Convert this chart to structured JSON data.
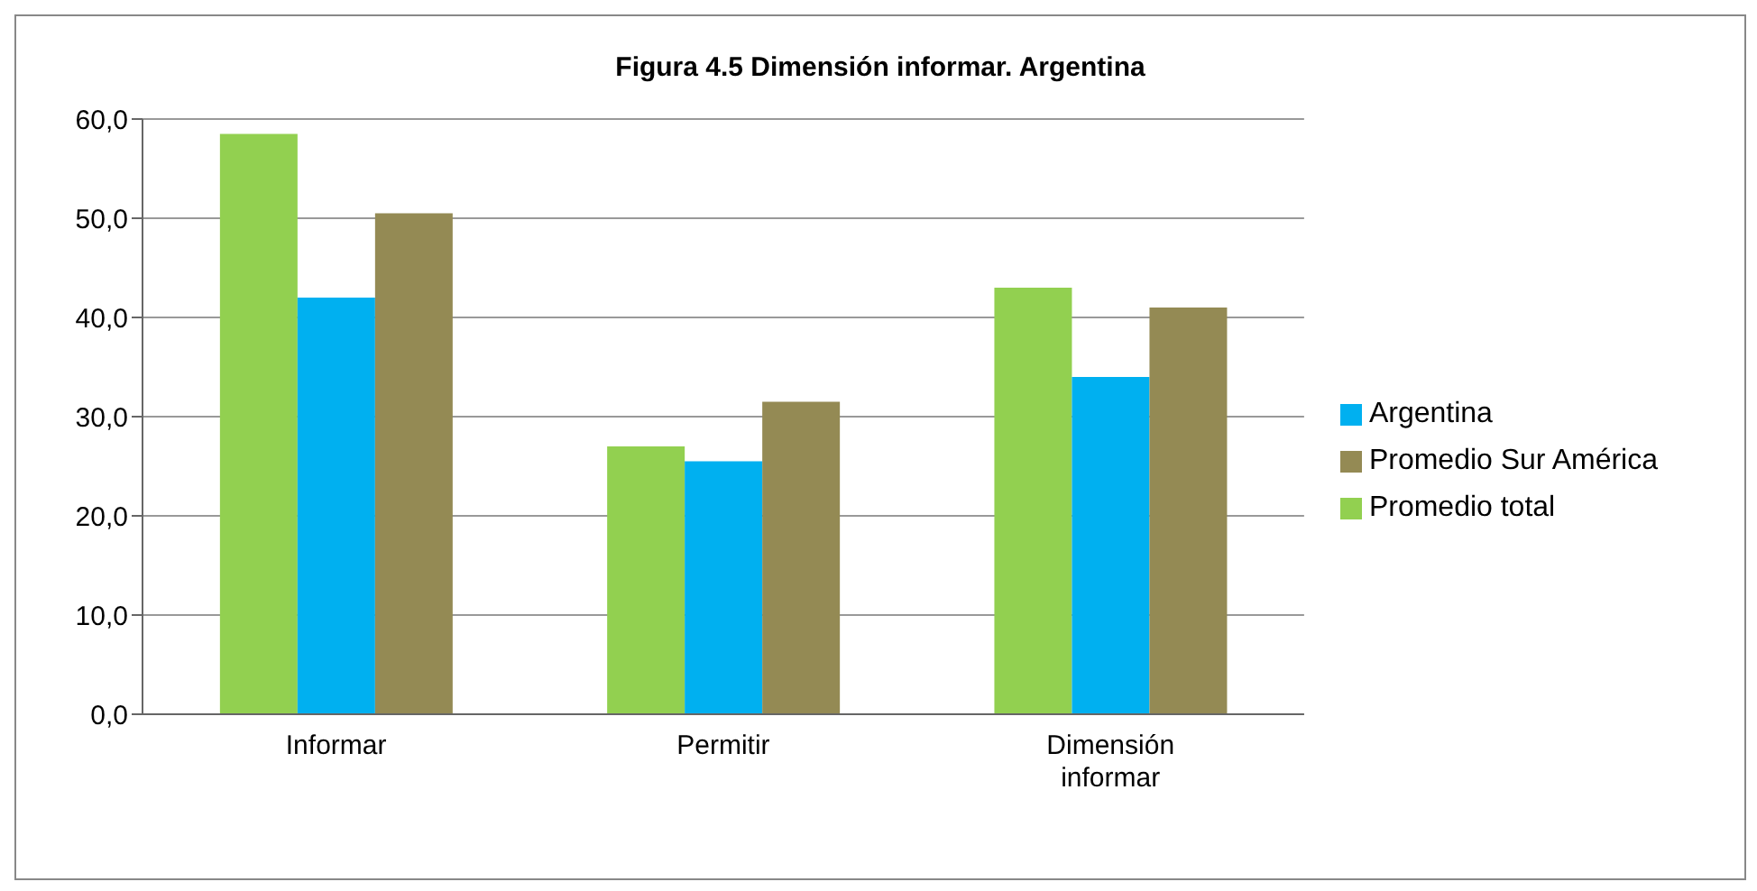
{
  "chart_data": {
    "type": "bar",
    "title": "Figura 4.5 Dimensión  informar. Argentina",
    "categories": [
      "Informar",
      "Permitir",
      "Dimensión informar"
    ],
    "series": [
      {
        "name": "Promedio total",
        "color": "#92d050",
        "values": [
          58.5,
          27,
          43
        ]
      },
      {
        "name": "Argentina",
        "color": "#00b0f0",
        "values": [
          42,
          25.5,
          34
        ]
      },
      {
        "name": "Promedio Sur América",
        "color": "#948a54",
        "values": [
          50.5,
          31.5,
          41
        ]
      }
    ],
    "ylim": [
      0,
      60
    ],
    "yticks": [
      {
        "value": 0,
        "label": "0,0"
      },
      {
        "value": 10,
        "label": "10,0"
      },
      {
        "value": 20,
        "label": "20,0"
      },
      {
        "value": 30,
        "label": "30,0"
      },
      {
        "value": 40,
        "label": "40,0"
      },
      {
        "value": 50,
        "label": "50,0"
      },
      {
        "value": 60,
        "label": "60,0"
      }
    ],
    "grid": "y",
    "legend": "right"
  }
}
